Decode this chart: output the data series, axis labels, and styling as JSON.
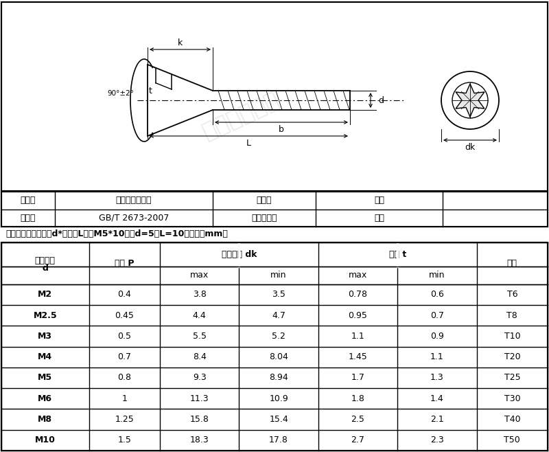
{
  "product_name": "梅花槽沉头螺钉",
  "material_value": "碳钢",
  "standard_value": "GB/T 2673-2007",
  "surface_value": "镀锌",
  "dimension_note": "尺寸标示：螺纹直径d*总长度L，如M5*10，即d=5，L=10（单位：mm）",
  "table_data": [
    [
      "M2",
      "0.4",
      "3.8",
      "3.5",
      "0.78",
      "0.6",
      "T6"
    ],
    [
      "M2.5",
      "0.45",
      "4.4",
      "4.7",
      "0.95",
      "0.7",
      "T8"
    ],
    [
      "M3",
      "0.5",
      "5.5",
      "5.2",
      "1.1",
      "0.9",
      "T10"
    ],
    [
      "M4",
      "0.7",
      "8.4",
      "8.04",
      "1.45",
      "1.1",
      "T20"
    ],
    [
      "M5",
      "0.8",
      "9.3",
      "8.94",
      "1.7",
      "1.3",
      "T25"
    ],
    [
      "M6",
      "1",
      "11.3",
      "10.9",
      "1.8",
      "1.4",
      "T30"
    ],
    [
      "M8",
      "1.25",
      "15.8",
      "15.4",
      "2.5",
      "2.1",
      "T40"
    ],
    [
      "M10",
      "1.5",
      "18.3",
      "17.8",
      "2.7",
      "2.3",
      "T50"
    ]
  ],
  "bg_color": "#ffffff",
  "watermark_text": "东莞一成精密"
}
